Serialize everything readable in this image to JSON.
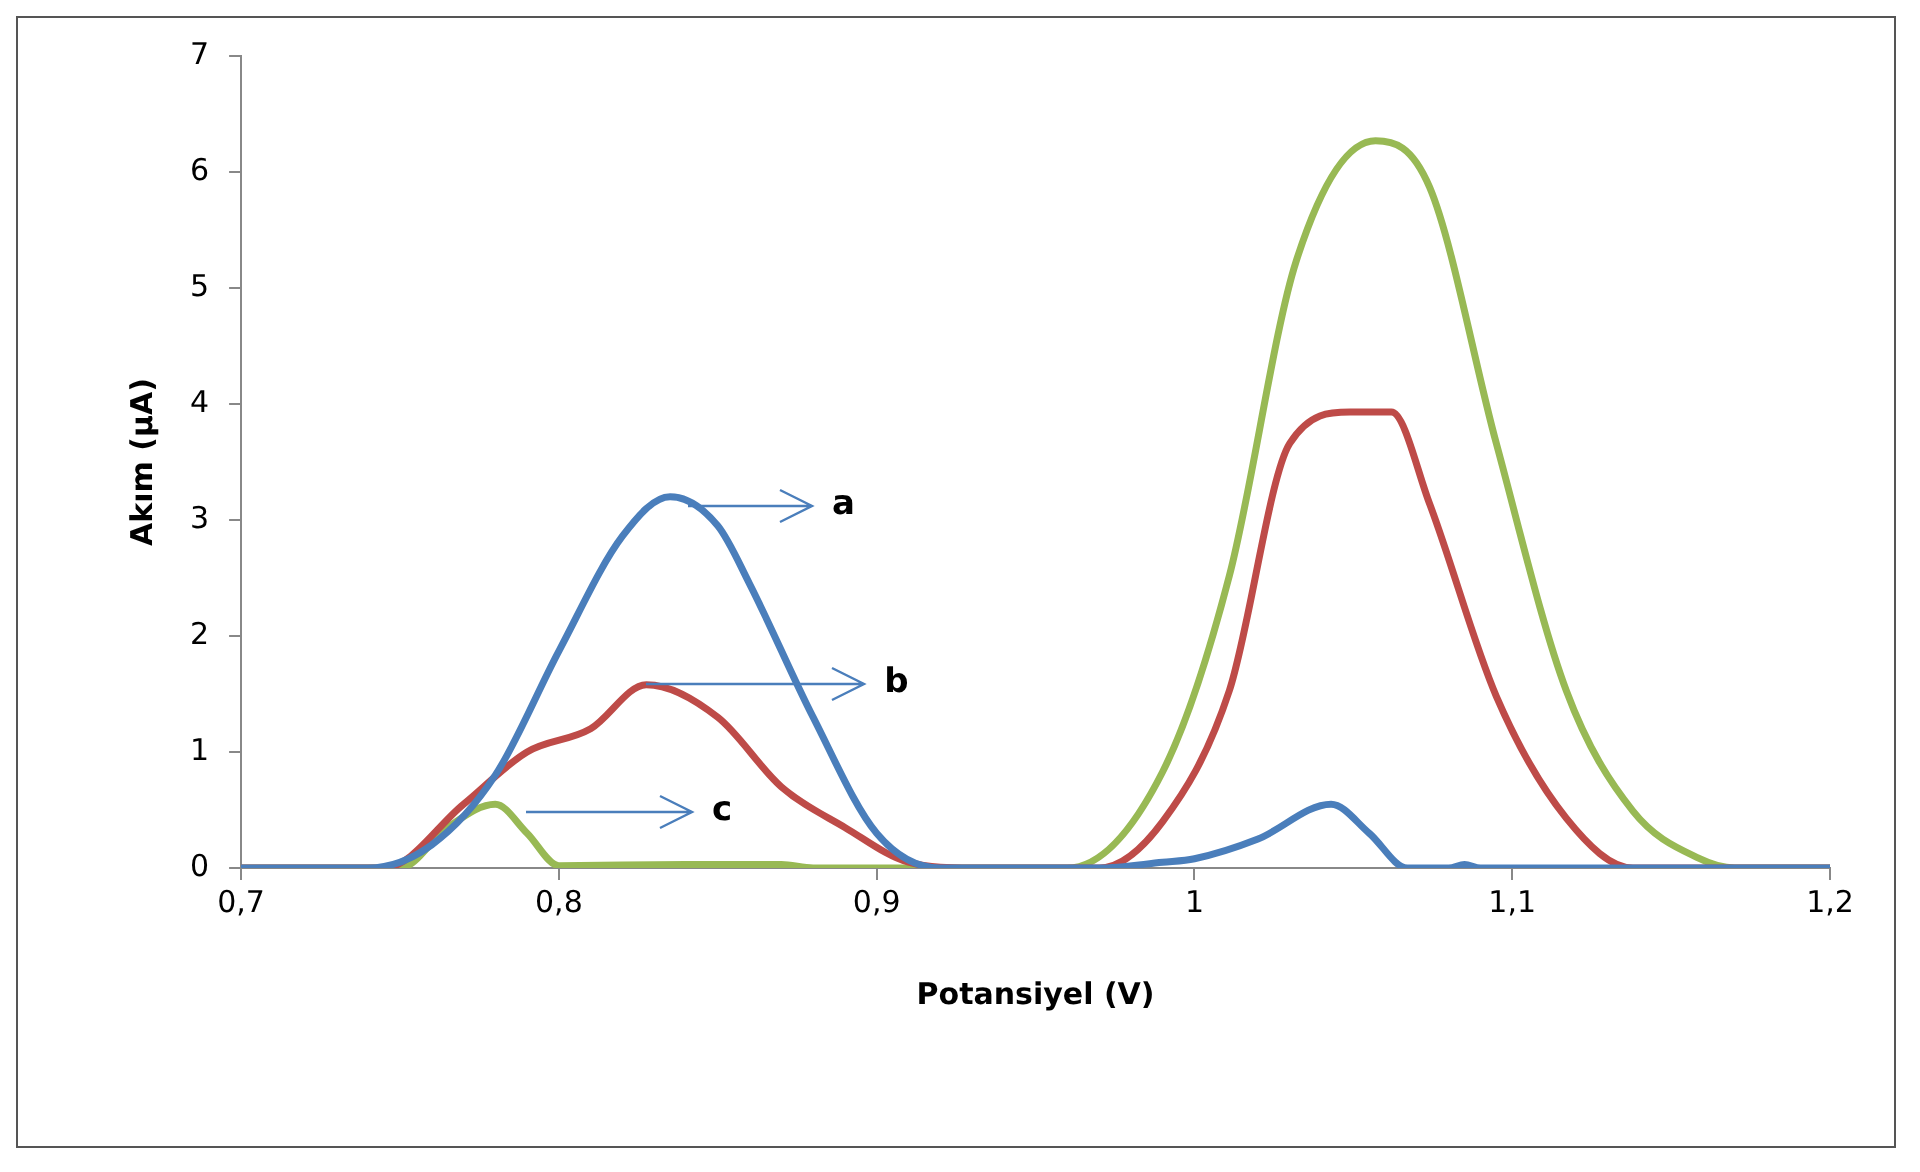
{
  "chart_data": {
    "type": "line",
    "xlabel": "Potansiyel (V)",
    "ylabel": "Akım (µA)",
    "xlim": [
      0.7,
      1.2
    ],
    "xticks": [
      {
        "value": 0.7,
        "label": "0,7"
      },
      {
        "value": 0.8,
        "label": "0,8"
      },
      {
        "value": 0.9,
        "label": "0,9"
      },
      1,
      {
        "value": 1.1,
        "label": "1,1"
      },
      {
        "value": 1.2,
        "label": "1,2"
      }
    ],
    "ylim": [
      0,
      7
    ],
    "yticks": [
      0,
      1,
      2,
      3,
      4,
      5,
      6,
      7
    ],
    "grid": false,
    "legend": false,
    "marker": "none",
    "line_style": "solid",
    "series": [
      {
        "color": "#4a7ebb",
        "x": [
          0.7,
          0.74,
          0.76,
          0.78,
          0.8,
          0.82,
          0.835,
          0.85,
          0.86,
          0.88,
          0.9,
          0.92,
          0.97,
          0.99,
          1.0,
          1.02,
          1.043,
          1.055,
          1.067,
          1.08,
          1.085,
          1.09,
          1.2
        ],
        "values": [
          0,
          0,
          0.2,
          0.8,
          1.87,
          2.86,
          3.2,
          2.95,
          2.45,
          1.3,
          0.3,
          0,
          0,
          0.05,
          0.08,
          0.25,
          0.55,
          0.3,
          0,
          0,
          0.03,
          0,
          0
        ]
      },
      {
        "color": "#be4b48",
        "x": [
          0.7,
          0.745,
          0.77,
          0.79,
          0.81,
          0.8275,
          0.85,
          0.87,
          0.89,
          0.91,
          0.93,
          0.97,
          0.99,
          1.011,
          1.03,
          1.049,
          1.062,
          1.074,
          1.095,
          1.117,
          1.138,
          1.2
        ],
        "values": [
          0,
          0,
          0.55,
          1.0,
          1.2,
          1.58,
          1.3,
          0.7,
          0.35,
          0.05,
          0,
          0,
          0.4,
          1.53,
          3.66,
          3.93,
          3.93,
          3.14,
          1.48,
          0.43,
          0,
          0
        ]
      },
      {
        "color": "#98b954",
        "x": [
          0.7,
          0.75,
          0.765,
          0.78,
          0.79,
          0.8,
          0.84,
          0.87,
          0.88,
          0.96,
          0.99,
          1.011,
          1.032,
          1.057,
          1.074,
          1.095,
          1.117,
          1.138,
          1.159,
          1.17,
          1.2
        ],
        "values": [
          0,
          0,
          0.35,
          0.55,
          0.3,
          0.02,
          0.03,
          0.03,
          0,
          0,
          0.83,
          2.52,
          5.23,
          6.27,
          5.87,
          3.66,
          1.53,
          0.49,
          0.08,
          0,
          0
        ]
      }
    ],
    "annotations": [
      "a",
      {
        "text": "b",
        "x": 0.8275,
        "y": 1.58
      },
      "c"
    ]
  }
}
